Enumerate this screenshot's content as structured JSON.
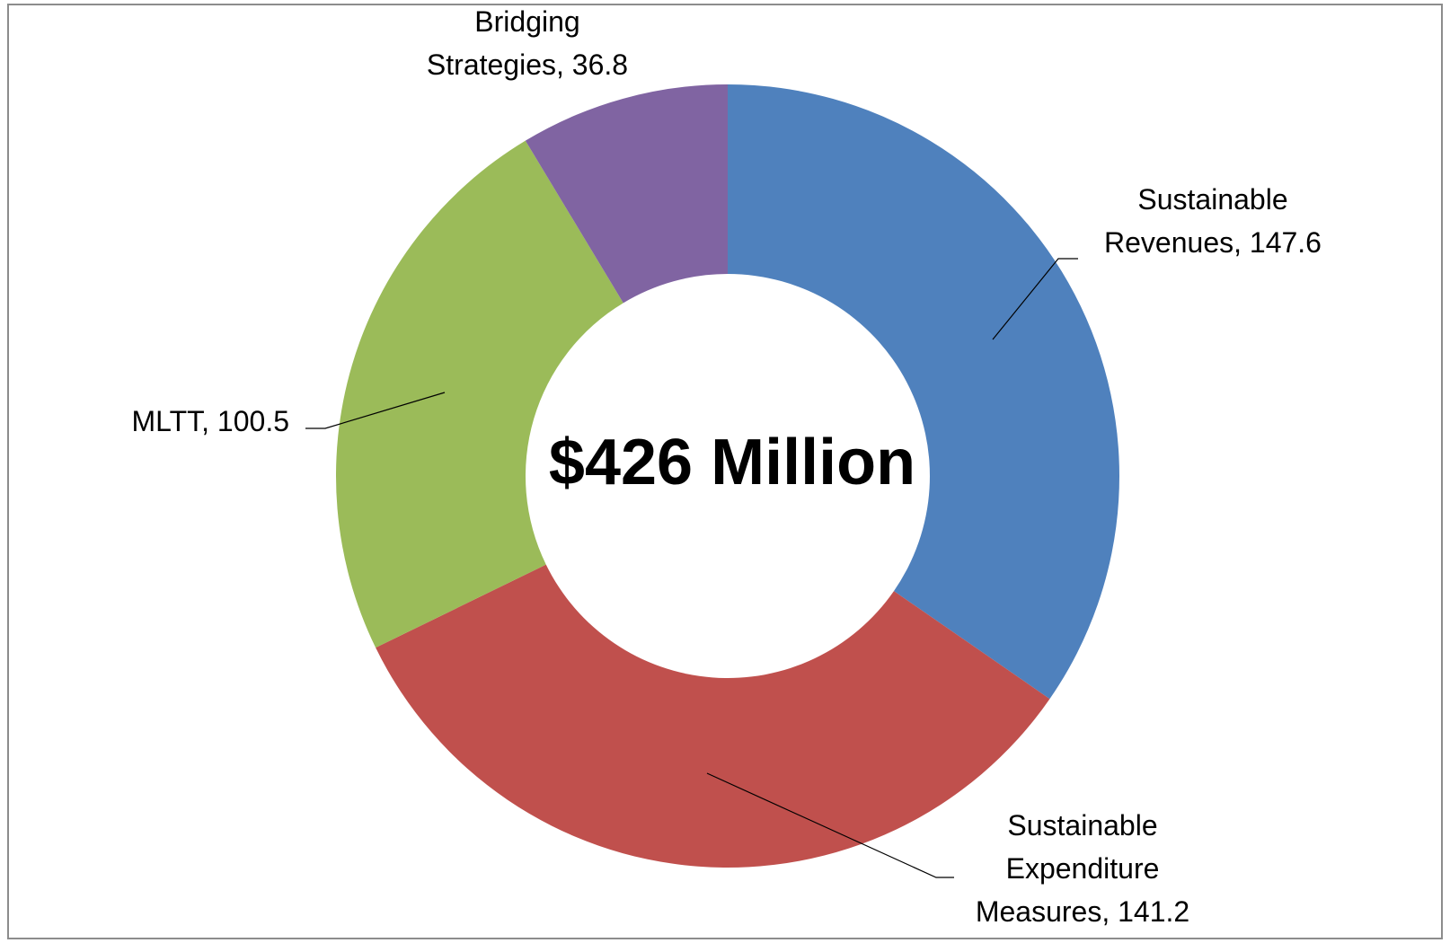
{
  "chart_data": {
    "type": "donut",
    "center_label": "$426 Million",
    "slices": [
      {
        "name": "Sustainable Revenues",
        "value": 147.6,
        "color": "#4F81BD",
        "label_lines": [
          "Sustainable",
          "Revenues, 147.6"
        ]
      },
      {
        "name": "Sustainable Expenditure Measures",
        "value": 141.2,
        "color": "#C0504D",
        "label_lines": [
          "Sustainable",
          "Expenditure",
          "Measures, 141.2"
        ]
      },
      {
        "name": "MLTT",
        "value": 100.5,
        "color": "#9BBB59",
        "label_lines": [
          "MLTT, 100.5"
        ]
      },
      {
        "name": "Bridging Strategies",
        "value": 36.8,
        "color": "#8064A2",
        "label_lines": [
          "Bridging",
          "Strategies, 36.8"
        ]
      }
    ],
    "legend": "none",
    "start_angle": "12 o'clock",
    "direction": "clockwise"
  }
}
